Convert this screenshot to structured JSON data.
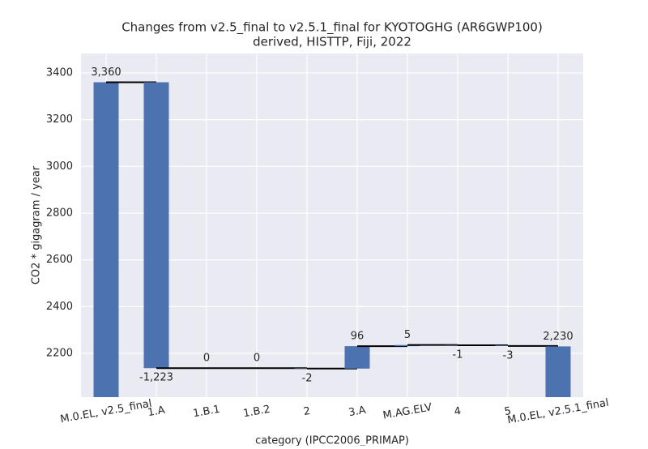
{
  "chart_data": {
    "type": "waterfall",
    "title": "Changes from v2.5_final to v2.5.1_final for KYOTOGHG (AR6GWP100)",
    "subtitle": "derived, HISTTP, Fiji, 2022",
    "x_label": "category (IPCC2006_PRIMAP)",
    "y_label": "CO2 * gigagram / year",
    "categories": [
      "M.0.EL, v2.5_final",
      "1.A",
      "1.B.1",
      "1.B.2",
      "2",
      "3.A",
      "M.AG.ELV",
      "4",
      "5",
      "M.0.EL, v2.5.1_final"
    ],
    "values": [
      3360,
      -1223,
      0,
      0,
      -2,
      96,
      5,
      -1,
      -3,
      2230
    ],
    "value_labels": [
      "3,360",
      "-1,223",
      "0",
      "0",
      "-2",
      "96",
      "5",
      "-1",
      "-3",
      "2,230"
    ],
    "color": "#4c72b0",
    "ylim": [
      2013,
      3483
    ],
    "yticks": [
      2200,
      2400,
      2600,
      2800,
      3000,
      3200,
      3400
    ],
    "grid": true
  }
}
